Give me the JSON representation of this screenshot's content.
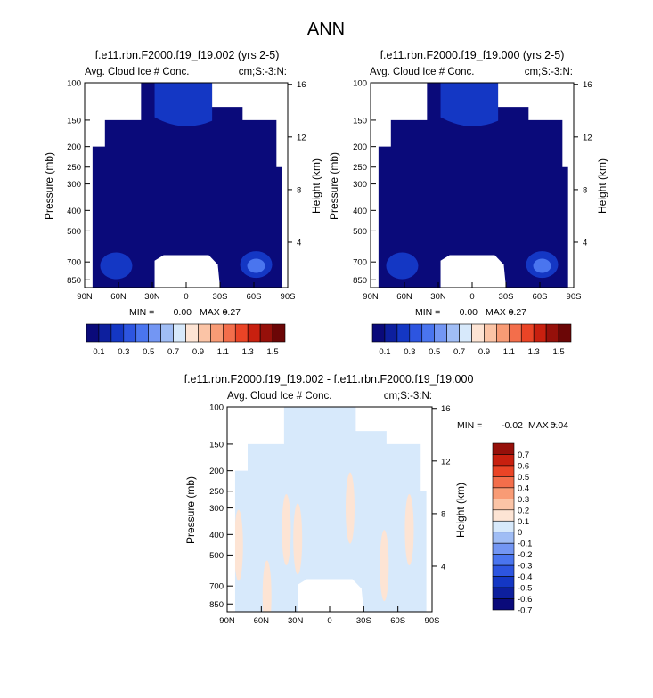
{
  "title": "ANN",
  "variable_label": "Avg. Cloud Ice # Conc.",
  "mask_label": "cm;S:-3:N:",
  "y_axis_label": "Pressure (mb)",
  "y_right_label": "Height (km)",
  "colors": {
    "land_mask": "#ffffff",
    "abs_palette": [
      "#0a0a7a",
      "#0d1f9e",
      "#1437c4",
      "#2d55e0",
      "#4a75ef",
      "#7396f3",
      "#a0bdf5",
      "#d7e9fb",
      "#fde4d4",
      "#fbc4a6",
      "#f89b75",
      "#f36e4b",
      "#ea4426",
      "#c8200f",
      "#96100a",
      "#6b0606"
    ],
    "diff_palette": [
      "#0a0a7a",
      "#0d1f9e",
      "#1437c4",
      "#2d55e0",
      "#4a75ef",
      "#7396f3",
      "#a0bdf5",
      "#d7e9fb",
      "#fde4d4",
      "#fbc4a6",
      "#f89b75",
      "#f36e4b",
      "#ea4426",
      "#c8200f",
      "#96100a"
    ]
  },
  "chart_data": [
    {
      "type": "heatmap",
      "title": "f.e11.rbn.F2000.f19_f19.002 (yrs 2-5)",
      "x_ticks": [
        "90N",
        "60N",
        "30N",
        "0",
        "30S",
        "60S",
        "90S"
      ],
      "y_ticks": [
        "100",
        "150",
        "200",
        "250",
        "300",
        "400",
        "500",
        "700",
        "850"
      ],
      "y_right_ticks": [
        "16",
        "12",
        "8",
        "4"
      ],
      "min": "0.00",
      "max": "0.27",
      "min_label": "MIN =",
      "max_label": "MAX =",
      "colorbar_labels": [
        "0.1",
        "0.3",
        "0.5",
        "0.7",
        "0.9",
        "1.1",
        "1.3",
        "1.5"
      ],
      "colorbar_orientation": "horizontal",
      "background_level": 0,
      "features": [
        {
          "kind": "blob",
          "lat": 62,
          "p": 730,
          "level": 2
        },
        {
          "kind": "blob",
          "lat": -62,
          "p": 720,
          "level": 2
        },
        {
          "kind": "blob",
          "lat": -62,
          "p": 730,
          "level": 4
        },
        {
          "kind": "upper",
          "level": 2
        }
      ]
    },
    {
      "type": "heatmap",
      "title": "f.e11.rbn.F2000.f19_f19.000 (yrs 2-5)",
      "x_ticks": [
        "90N",
        "60N",
        "30N",
        "0",
        "30S",
        "60S",
        "90S"
      ],
      "y_ticks": [
        "100",
        "150",
        "200",
        "250",
        "300",
        "400",
        "500",
        "700",
        "850"
      ],
      "y_right_ticks": [
        "16",
        "12",
        "8",
        "4"
      ],
      "min": "0.00",
      "max": "0.27",
      "min_label": "MIN =",
      "max_label": "MAX =",
      "colorbar_labels": [
        "0.1",
        "0.3",
        "0.5",
        "0.7",
        "0.9",
        "1.1",
        "1.3",
        "1.5"
      ],
      "colorbar_orientation": "horizontal",
      "background_level": 0,
      "features": [
        {
          "kind": "blob",
          "lat": 62,
          "p": 730,
          "level": 2
        },
        {
          "kind": "blob",
          "lat": -62,
          "p": 720,
          "level": 2
        },
        {
          "kind": "blob",
          "lat": -62,
          "p": 730,
          "level": 4
        },
        {
          "kind": "upper",
          "level": 2
        }
      ]
    },
    {
      "type": "heatmap",
      "title": "f.e11.rbn.F2000.f19_f19.002 - f.e11.rbn.F2000.f19_f19.000",
      "x_ticks": [
        "90N",
        "60N",
        "30N",
        "0",
        "30S",
        "60S",
        "90S"
      ],
      "y_ticks": [
        "100",
        "150",
        "200",
        "250",
        "300",
        "400",
        "500",
        "700",
        "850"
      ],
      "y_right_ticks": [
        "16",
        "12",
        "8",
        "4"
      ],
      "min": "-0.02",
      "max": "0.04",
      "min_label": "MIN =",
      "max_label": "MAX =",
      "colorbar_labels": [
        "0.7",
        "0.6",
        "0.5",
        "0.4",
        "0.3",
        "0.2",
        "0.1",
        "0",
        "-0.1",
        "-0.2",
        "-0.3",
        "-0.4",
        "-0.5",
        "-0.6",
        "-0.7"
      ],
      "colorbar_orientation": "vertical",
      "background_level": 7,
      "features": [
        {
          "kind": "streak",
          "lat": 38,
          "p": 380,
          "level": 8
        },
        {
          "kind": "streak",
          "lat": 28,
          "p": 420,
          "level": 8
        },
        {
          "kind": "streak",
          "lat": -18,
          "p": 300,
          "level": 8
        },
        {
          "kind": "streak",
          "lat": -48,
          "p": 560,
          "level": 8
        },
        {
          "kind": "streak",
          "lat": -70,
          "p": 380,
          "level": 8
        },
        {
          "kind": "streak",
          "lat": 80,
          "p": 450,
          "level": 8
        },
        {
          "kind": "streak",
          "lat": 55,
          "p": 780,
          "level": 8
        }
      ]
    }
  ]
}
